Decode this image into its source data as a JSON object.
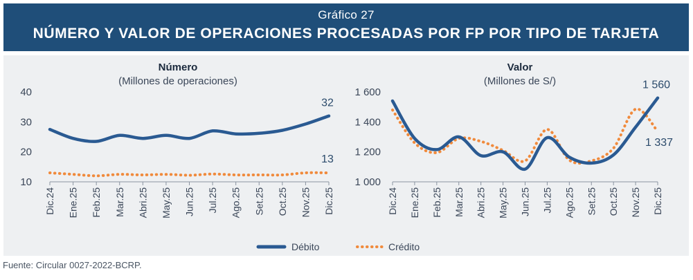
{
  "header": {
    "supertitle": "Gráfico 27",
    "title": "NÚMERO Y VALOR DE OPERACIONES PROCESADAS POR FP POR TIPO DE TARJETA"
  },
  "source": "Fuente: Circular 0027-2022-BCRP.",
  "legend": {
    "debit": "Débito",
    "credit": "Crédito"
  },
  "colors": {
    "debit": "#2a5a92",
    "credit": "#f08a3c",
    "header": "#1f4e79",
    "panel": "#eef0f2"
  },
  "chart_data": [
    {
      "type": "line",
      "title": "Número",
      "subtitle": "(Millones de operaciones)",
      "categories": [
        "Dic.24",
        "Ene.25",
        "Feb.25",
        "Mar.25",
        "Abri.25",
        "May.25",
        "Jun.25",
        "Jul.25",
        "Ago.25",
        "Set.25",
        "Oct.25",
        "Nov.25",
        "Dic.25"
      ],
      "ylim": [
        10,
        40
      ],
      "yticks": [
        "10",
        "20",
        "30",
        "40"
      ],
      "series": [
        {
          "name": "Débito",
          "style": "solid",
          "values": [
            27.5,
            24.5,
            23.5,
            25.5,
            24.5,
            25.5,
            24.5,
            27.0,
            26.0,
            26.2,
            27.2,
            29.3,
            32
          ],
          "end_label": "32"
        },
        {
          "name": "Crédito",
          "style": "dotted",
          "values": [
            13.0,
            12.5,
            12.0,
            12.5,
            12.3,
            12.5,
            12.2,
            12.6,
            12.3,
            12.3,
            12.3,
            13.0,
            13
          ],
          "end_label": "13"
        }
      ]
    },
    {
      "type": "line",
      "title": "Valor",
      "subtitle": "(Millones de S/)",
      "categories": [
        "Dic.24",
        "Ene.25",
        "Feb.25",
        "Mar.25",
        "Abri.25",
        "May.25",
        "Jun.25",
        "Jul.25",
        "Ago.25",
        "Set.25",
        "Oct.25",
        "Nov.25",
        "Dic.25"
      ],
      "ylim": [
        1000,
        1600
      ],
      "yticks": [
        "1 000",
        "1 200",
        "1 400",
        "1 600"
      ],
      "series": [
        {
          "name": "Débito",
          "style": "solid",
          "values": [
            1540,
            1290,
            1215,
            1300,
            1175,
            1200,
            1085,
            1295,
            1165,
            1125,
            1180,
            1365,
            1560
          ],
          "end_label": "1 560"
        },
        {
          "name": "Crédito",
          "style": "dotted",
          "values": [
            1480,
            1260,
            1195,
            1290,
            1270,
            1210,
            1140,
            1350,
            1145,
            1140,
            1225,
            1485,
            1337
          ],
          "end_label": "1 337"
        }
      ]
    }
  ]
}
